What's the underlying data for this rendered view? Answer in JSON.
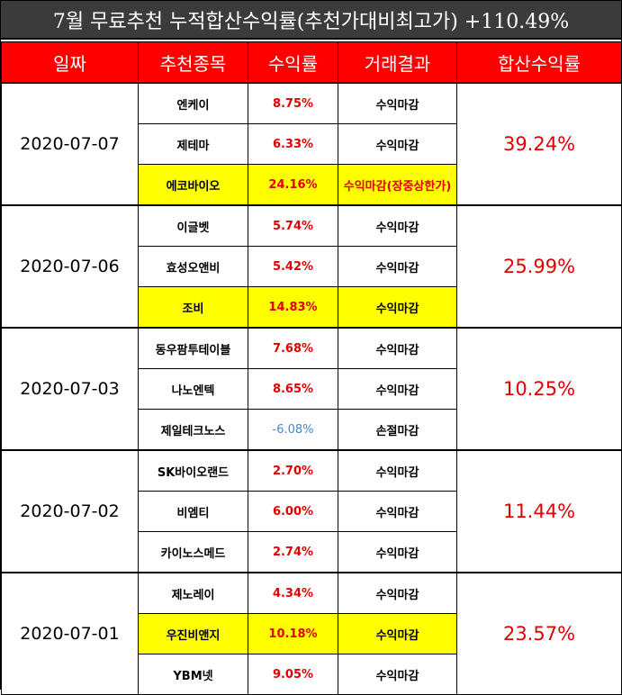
{
  "title": "7월 무료추천 누적합산수익률(추천가대비최고가) +110.49%",
  "headers": {
    "date": "일짜",
    "stock": "추천종목",
    "rate": "수익률",
    "result": "거래결과",
    "total": "합산수익률"
  },
  "groups": [
    {
      "date": "2020-07-07",
      "total": "39.24%",
      "rows": [
        {
          "stock": "엔케이",
          "rate": "8.75%",
          "result": "수익마감"
        },
        {
          "stock": "제테마",
          "rate": "6.33%",
          "result": "수익마감"
        },
        {
          "stock": "에코바이오",
          "rate": "24.16%",
          "result": "수익마감(장중상한가)"
        }
      ]
    },
    {
      "date": "2020-07-06",
      "total": "25.99%",
      "rows": [
        {
          "stock": "이글벳",
          "rate": "5.74%",
          "result": "수익마감"
        },
        {
          "stock": "효성오앤비",
          "rate": "5.42%",
          "result": "수익마감"
        },
        {
          "stock": "조비",
          "rate": "14.83%",
          "result": "수익마감"
        }
      ]
    },
    {
      "date": "2020-07-03",
      "total": "10.25%",
      "rows": [
        {
          "stock": "동우팜투테이블",
          "rate": "7.68%",
          "result": "수익마감"
        },
        {
          "stock": "나노엔텍",
          "rate": "8.65%",
          "result": "수익마감"
        },
        {
          "stock": "제일테크노스",
          "rate": "-6.08%",
          "result": "손절마감"
        }
      ]
    },
    {
      "date": "2020-07-02",
      "total": "11.44%",
      "rows": [
        {
          "stock": "SK바이오랜드",
          "rate": "2.70%",
          "result": "수익마감"
        },
        {
          "stock": "비엠티",
          "rate": "6.00%",
          "result": "수익마감"
        },
        {
          "stock": "카이노스메드",
          "rate": "2.74%",
          "result": "수익마감"
        }
      ]
    },
    {
      "date": "2020-07-01",
      "total": "23.57%",
      "rows": [
        {
          "stock": "제노레이",
          "rate": "4.34%",
          "result": "수익마감"
        },
        {
          "stock": "우진비앤지",
          "rate": "10.18%",
          "result": "수익마감"
        },
        {
          "stock": "YBM넷",
          "rate": "9.05%",
          "result": "수익마감"
        }
      ]
    }
  ],
  "colors": {
    "title_bg": "#3b3b3b",
    "header_bg": "#ff0000",
    "highlight": "#ffff00",
    "positive": "#e00000",
    "negative": "#4a86c8"
  }
}
